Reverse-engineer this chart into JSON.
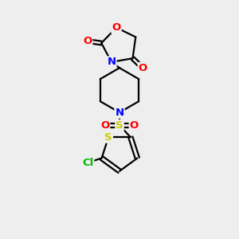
{
  "background_color": "#eeeeee",
  "atom_colors": {
    "C": "#000000",
    "N": "#0000ff",
    "O": "#ff0000",
    "S_yellow": "#cccc00",
    "Cl": "#00bb00"
  },
  "bond_color": "#000000",
  "bond_width": 1.6,
  "fig_size": [
    3.0,
    3.0
  ],
  "dpi": 100
}
